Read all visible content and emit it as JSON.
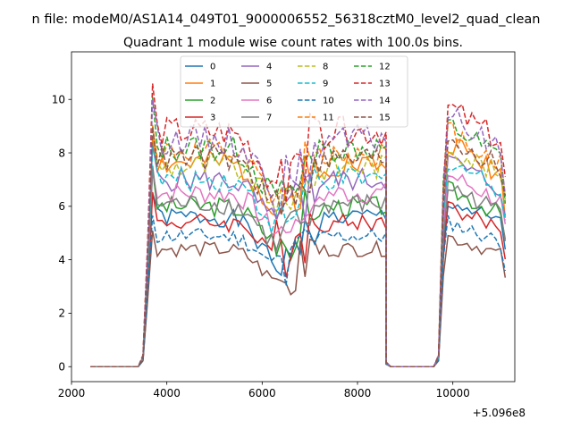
{
  "chart_data": {
    "type": "line",
    "suptitle": "n file: modeM0/AS1A14_049T01_9000006552_56318cztM0_level2_quad_clean",
    "title": "Quadrant 1 module wise count rates with 100.0s bins.",
    "xlabel": "",
    "ylabel": "",
    "x_offset_label": "+5.096e8",
    "xlim": [
      2000,
      11300
    ],
    "ylim": [
      -0.56,
      11.78
    ],
    "xticks": [
      2000,
      4000,
      6000,
      8000,
      10000
    ],
    "xtick_labels": [
      "2000",
      "4000",
      "6000",
      "8000",
      "10000"
    ],
    "yticks": [
      0,
      2,
      4,
      6,
      8,
      10
    ],
    "ytick_labels": [
      "0",
      "2",
      "4",
      "6",
      "8",
      "10"
    ],
    "legend_placement": "top-center",
    "legend_columns": 4,
    "segments": [
      {
        "start": 2400,
        "n": 11,
        "kind": "zero"
      },
      {
        "start": 3500,
        "n": 1,
        "kind": "ramp",
        "frac": 0.05
      },
      {
        "start": 3600,
        "n": 51,
        "kind": "active",
        "shape": "mid"
      },
      {
        "start": 8600,
        "n": 1,
        "kind": "drop",
        "frac": 0.02
      },
      {
        "start": 8700,
        "n": 10,
        "kind": "zero"
      },
      {
        "start": 9700,
        "n": 1,
        "kind": "ramp",
        "frac": 0.05
      },
      {
        "start": 9800,
        "n": 14,
        "kind": "active",
        "shape": "late"
      }
    ],
    "series": [
      {
        "name": "0",
        "level": 5.6,
        "dip": 1.8,
        "color": "#1f77b4",
        "dash": "solid",
        "seed": 1
      },
      {
        "name": "1",
        "level": 7.6,
        "dip": 1.6,
        "color": "#ff7f0e",
        "dash": "solid",
        "seed": 2
      },
      {
        "name": "2",
        "level": 6.0,
        "dip": 1.3,
        "color": "#2ca02c",
        "dash": "solid",
        "seed": 3
      },
      {
        "name": "3",
        "level": 5.4,
        "dip": 1.0,
        "color": "#d62728",
        "dash": "solid",
        "seed": 4
      },
      {
        "name": "4",
        "level": 7.0,
        "dip": 1.6,
        "color": "#9467bd",
        "dash": "solid",
        "seed": 5
      },
      {
        "name": "5",
        "level": 4.4,
        "dip": 1.2,
        "color": "#8c564b",
        "dash": "solid",
        "seed": 6
      },
      {
        "name": "6",
        "level": 6.5,
        "dip": 1.4,
        "color": "#e377c2",
        "dash": "solid",
        "seed": 7
      },
      {
        "name": "7",
        "level": 6.1,
        "dip": 1.5,
        "color": "#7f7f7f",
        "dash": "solid",
        "seed": 8
      },
      {
        "name": "8",
        "level": 7.5,
        "dip": 1.4,
        "color": "#bcbd22",
        "dash": "dashed",
        "seed": 9
      },
      {
        "name": "9",
        "level": 7.0,
        "dip": 1.7,
        "color": "#17becf",
        "dash": "dashed",
        "seed": 10
      },
      {
        "name": "10",
        "level": 4.9,
        "dip": 1.1,
        "color": "#1f77b4",
        "dash": "dashed",
        "seed": 11
      },
      {
        "name": "11",
        "level": 8.0,
        "dip": 1.8,
        "color": "#ff7f0e",
        "dash": "dashed",
        "seed": 12
      },
      {
        "name": "12",
        "level": 8.2,
        "dip": 1.9,
        "color": "#2ca02c",
        "dash": "dashed",
        "seed": 13
      },
      {
        "name": "13",
        "level": 8.8,
        "dip": 2.0,
        "color": "#d62728",
        "dash": "dashed",
        "seed": 14
      },
      {
        "name": "14",
        "level": 8.5,
        "dip": 1.9,
        "color": "#9467bd",
        "dash": "dashed",
        "seed": 15
      },
      {
        "name": "15",
        "level": 7.8,
        "dip": 1.8,
        "color": "#8c564b",
        "dash": "dashed",
        "seed": 16
      }
    ]
  }
}
